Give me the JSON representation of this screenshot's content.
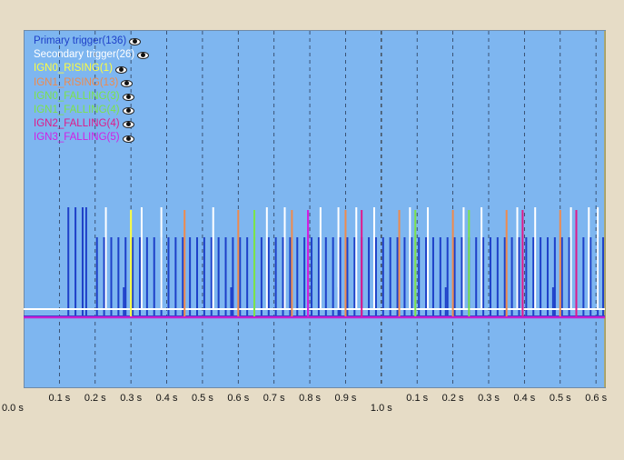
{
  "chart_data": {
    "type": "line",
    "legend_position": "top-left",
    "grid": true,
    "x_unit": "s",
    "x_range": [
      0.0,
      1.625
    ],
    "series": [
      {
        "name": "Primary trigger(136)",
        "color": "#1e40c8",
        "kind": "pulse",
        "baseline": "low",
        "pulses": [
          {
            "t": 0.125,
            "h": "tall"
          },
          {
            "t": 0.145,
            "h": "tall"
          },
          {
            "t": 0.165,
            "h": "tall"
          },
          {
            "t": 0.175,
            "h": "tall"
          },
          {
            "t": 0.205,
            "h": "med"
          },
          {
            "t": 0.225,
            "h": "med"
          },
          {
            "t": 0.245,
            "h": "med"
          },
          {
            "t": 0.265,
            "h": "med"
          },
          {
            "t": 0.28,
            "h": "short"
          },
          {
            "t": 0.285,
            "h": "med"
          },
          {
            "t": 0.305,
            "h": "med"
          },
          {
            "t": 0.325,
            "h": "med"
          },
          {
            "t": 0.345,
            "h": "med"
          },
          {
            "t": 0.365,
            "h": "med"
          },
          {
            "t": 0.385,
            "h": "med"
          },
          {
            "t": 0.405,
            "h": "med"
          },
          {
            "t": 0.425,
            "h": "med"
          },
          {
            "t": 0.445,
            "h": "med"
          },
          {
            "t": 0.465,
            "h": "med"
          },
          {
            "t": 0.485,
            "h": "med"
          },
          {
            "t": 0.505,
            "h": "med"
          },
          {
            "t": 0.525,
            "h": "med"
          },
          {
            "t": 0.545,
            "h": "med"
          },
          {
            "t": 0.565,
            "h": "med"
          },
          {
            "t": 0.58,
            "h": "short"
          },
          {
            "t": 0.585,
            "h": "med"
          },
          {
            "t": 0.605,
            "h": "med"
          },
          {
            "t": 0.625,
            "h": "med"
          },
          {
            "t": 0.645,
            "h": "med"
          },
          {
            "t": 0.665,
            "h": "med"
          },
          {
            "t": 0.685,
            "h": "med"
          },
          {
            "t": 0.705,
            "h": "med"
          },
          {
            "t": 0.725,
            "h": "med"
          },
          {
            "t": 0.745,
            "h": "med"
          },
          {
            "t": 0.765,
            "h": "med"
          },
          {
            "t": 0.785,
            "h": "med"
          },
          {
            "t": 0.805,
            "h": "med"
          },
          {
            "t": 0.825,
            "h": "med"
          },
          {
            "t": 0.845,
            "h": "med"
          },
          {
            "t": 0.865,
            "h": "med"
          },
          {
            "t": 0.88,
            "h": "short"
          },
          {
            "t": 0.885,
            "h": "med"
          },
          {
            "t": 0.905,
            "h": "med"
          },
          {
            "t": 0.925,
            "h": "med"
          },
          {
            "t": 0.945,
            "h": "med"
          },
          {
            "t": 0.965,
            "h": "med"
          },
          {
            "t": 0.985,
            "h": "med"
          },
          {
            "t": 1.005,
            "h": "med"
          },
          {
            "t": 1.025,
            "h": "med"
          },
          {
            "t": 1.045,
            "h": "med"
          },
          {
            "t": 1.065,
            "h": "med"
          },
          {
            "t": 1.085,
            "h": "med"
          },
          {
            "t": 1.105,
            "h": "med"
          },
          {
            "t": 1.125,
            "h": "med"
          },
          {
            "t": 1.145,
            "h": "med"
          },
          {
            "t": 1.165,
            "h": "med"
          },
          {
            "t": 1.18,
            "h": "short"
          },
          {
            "t": 1.185,
            "h": "med"
          },
          {
            "t": 1.205,
            "h": "med"
          },
          {
            "t": 1.225,
            "h": "med"
          },
          {
            "t": 1.245,
            "h": "med"
          },
          {
            "t": 1.265,
            "h": "med"
          },
          {
            "t": 1.285,
            "h": "med"
          },
          {
            "t": 1.305,
            "h": "med"
          },
          {
            "t": 1.325,
            "h": "med"
          },
          {
            "t": 1.345,
            "h": "med"
          },
          {
            "t": 1.365,
            "h": "med"
          },
          {
            "t": 1.385,
            "h": "med"
          },
          {
            "t": 1.405,
            "h": "med"
          },
          {
            "t": 1.425,
            "h": "med"
          },
          {
            "t": 1.445,
            "h": "med"
          },
          {
            "t": 1.465,
            "h": "med"
          },
          {
            "t": 1.48,
            "h": "short"
          },
          {
            "t": 1.485,
            "h": "med"
          },
          {
            "t": 1.505,
            "h": "med"
          },
          {
            "t": 1.525,
            "h": "med"
          },
          {
            "t": 1.545,
            "h": "med"
          },
          {
            "t": 1.565,
            "h": "med"
          },
          {
            "t": 1.585,
            "h": "med"
          },
          {
            "t": 1.605,
            "h": "med"
          },
          {
            "t": 1.62,
            "h": "med"
          }
        ]
      },
      {
        "name": "Secondary trigger(26)",
        "color": "#ffffff",
        "kind": "pulse",
        "baseline": "mid",
        "pulses": [
          {
            "t": 0.23,
            "h": "tall"
          },
          {
            "t": 0.33,
            "h": "tall"
          },
          {
            "t": 0.385,
            "h": "tall"
          },
          {
            "t": 0.53,
            "h": "tall"
          },
          {
            "t": 0.68,
            "h": "tall"
          },
          {
            "t": 0.73,
            "h": "tall"
          },
          {
            "t": 0.83,
            "h": "tall"
          },
          {
            "t": 0.88,
            "h": "tall"
          },
          {
            "t": 0.93,
            "h": "tall"
          },
          {
            "t": 0.98,
            "h": "tall"
          },
          {
            "t": 1.08,
            "h": "tall"
          },
          {
            "t": 1.13,
            "h": "tall"
          },
          {
            "t": 1.23,
            "h": "tall"
          },
          {
            "t": 1.28,
            "h": "tall"
          },
          {
            "t": 1.38,
            "h": "tall"
          },
          {
            "t": 1.43,
            "h": "tall"
          },
          {
            "t": 1.53,
            "h": "tall"
          },
          {
            "t": 1.58,
            "h": "tall"
          },
          {
            "t": 1.605,
            "h": "tall"
          }
        ]
      },
      {
        "name": "IGN0_RISING(1)",
        "color": "#ffff3c",
        "kind": "spike",
        "t": [
          0.3
        ]
      },
      {
        "name": "IGN1_RISING(13)",
        "color": "#f08a4b",
        "kind": "spike",
        "t": [
          0.45,
          0.6,
          0.75,
          0.9,
          1.05,
          1.2,
          1.35,
          1.5
        ]
      },
      {
        "name": "IGN0_FALLING(3)",
        "color": "#7be34a",
        "kind": "spike",
        "t": [
          0.645,
          1.095,
          1.245
        ]
      },
      {
        "name": "IGN1_FALLING(4)",
        "color": "#7be34a",
        "kind": "spike",
        "t": [
          0.645
        ]
      },
      {
        "name": "IGN2_FALLING(4)",
        "color": "#e0198a",
        "kind": "spike",
        "t": [
          0.795,
          0.945,
          1.395,
          1.545
        ]
      },
      {
        "name": "IGN3_FALLING(5)",
        "color": "#d21ee6",
        "kind": "spike",
        "t": [
          0.795
        ]
      }
    ],
    "x_ticks": [
      {
        "t": 0.0,
        "label": "0.0 s",
        "row": 2
      },
      {
        "t": 0.1,
        "label": "0.1 s",
        "row": 1
      },
      {
        "t": 0.2,
        "label": "0.2 s",
        "row": 1
      },
      {
        "t": 0.3,
        "label": "0.3 s",
        "row": 1
      },
      {
        "t": 0.4,
        "label": "0.4 s",
        "row": 1
      },
      {
        "t": 0.5,
        "label": "0.5 s",
        "row": 1
      },
      {
        "t": 0.6,
        "label": "0.6 s",
        "row": 1
      },
      {
        "t": 0.7,
        "label": "0.7 s",
        "row": 1
      },
      {
        "t": 0.8,
        "label": "0.8 s",
        "row": 1
      },
      {
        "t": 0.9,
        "label": "0.9 s",
        "row": 1
      },
      {
        "t": 1.0,
        "label": "1.0 s",
        "row": 2
      },
      {
        "t": 1.1,
        "label": "0.1 s",
        "row": 1
      },
      {
        "t": 1.2,
        "label": "0.2 s",
        "row": 1
      },
      {
        "t": 1.3,
        "label": "0.3 s",
        "row": 1
      },
      {
        "t": 1.4,
        "label": "0.4 s",
        "row": 1
      },
      {
        "t": 1.5,
        "label": "0.5 s",
        "row": 1
      },
      {
        "t": 1.6,
        "label": "0.6 s",
        "row": 1
      }
    ]
  }
}
